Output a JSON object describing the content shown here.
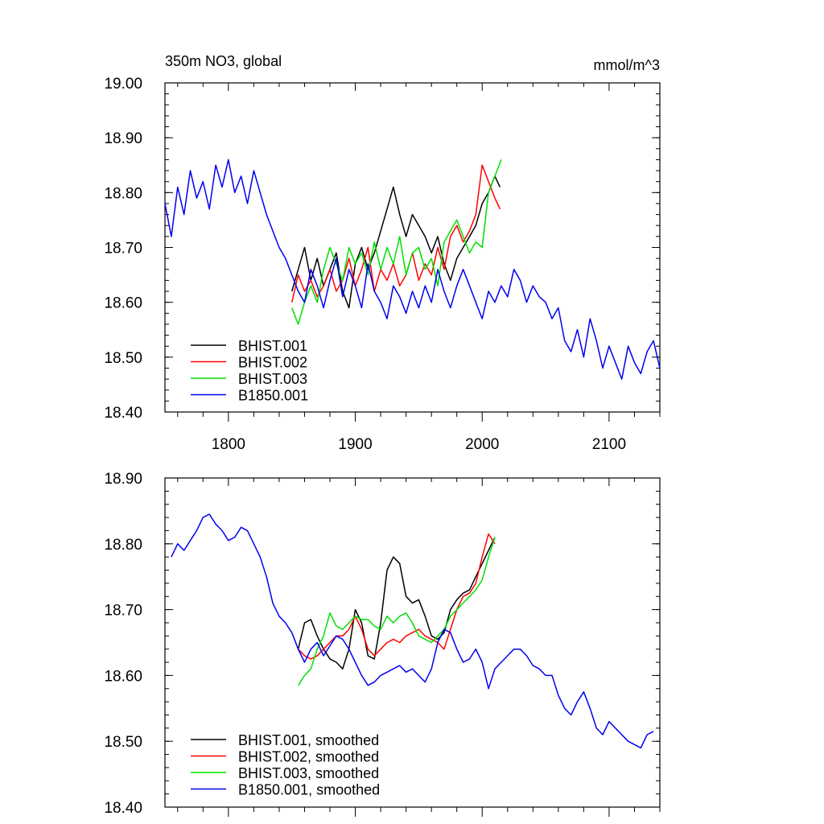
{
  "chart_data": [
    {
      "type": "line",
      "title": "350m NO3, global",
      "units": "mmol/m^3",
      "xlim": [
        1750,
        2140
      ],
      "ylim": [
        18.4,
        19.0
      ],
      "yticks": [
        "18.40",
        "18.50",
        "18.60",
        "18.70",
        "18.80",
        "18.90",
        "19.00"
      ],
      "yticks_values": [
        18.4,
        18.5,
        18.6,
        18.7,
        18.8,
        18.9,
        19.0
      ],
      "xticks": [
        "1800",
        "1900",
        "2000",
        "2100"
      ],
      "xticks_values": [
        1800,
        1900,
        2000,
        2100
      ],
      "legend_position": "bottom-left",
      "series": [
        {
          "name": "BHIST.001",
          "color": "#000000",
          "x": [
            1850,
            1855,
            1860,
            1865,
            1870,
            1875,
            1880,
            1885,
            1890,
            1895,
            1900,
            1905,
            1910,
            1915,
            1920,
            1925,
            1930,
            1935,
            1940,
            1945,
            1950,
            1955,
            1960,
            1965,
            1970,
            1975,
            1980,
            1985,
            1990,
            1995,
            2000,
            2005,
            2010,
            2014
          ],
          "y": [
            18.62,
            18.66,
            18.7,
            18.64,
            18.68,
            18.63,
            18.66,
            18.69,
            18.62,
            18.59,
            18.67,
            18.7,
            18.66,
            18.69,
            18.73,
            18.77,
            18.81,
            18.76,
            18.72,
            18.76,
            18.74,
            18.72,
            18.69,
            18.72,
            18.67,
            18.64,
            18.68,
            18.7,
            18.72,
            18.74,
            18.78,
            18.8,
            18.83,
            18.81
          ]
        },
        {
          "name": "BHIST.002",
          "color": "#ff0000",
          "x": [
            1850,
            1855,
            1860,
            1865,
            1870,
            1875,
            1880,
            1885,
            1890,
            1895,
            1900,
            1905,
            1910,
            1915,
            1920,
            1925,
            1930,
            1935,
            1940,
            1945,
            1950,
            1955,
            1960,
            1965,
            1970,
            1975,
            1980,
            1985,
            1990,
            1995,
            2000,
            2005,
            2010,
            2014
          ],
          "y": [
            18.6,
            18.65,
            18.62,
            18.64,
            18.61,
            18.63,
            18.66,
            18.62,
            18.64,
            18.68,
            18.63,
            18.66,
            18.7,
            18.62,
            18.66,
            18.64,
            18.67,
            18.63,
            18.65,
            18.69,
            18.64,
            18.67,
            18.65,
            18.7,
            18.66,
            18.72,
            18.74,
            18.71,
            18.73,
            18.76,
            18.85,
            18.82,
            18.79,
            18.77
          ]
        },
        {
          "name": "BHIST.003",
          "color": "#00e000",
          "x": [
            1850,
            1855,
            1860,
            1865,
            1870,
            1875,
            1880,
            1885,
            1890,
            1895,
            1900,
            1905,
            1910,
            1915,
            1920,
            1925,
            1930,
            1935,
            1940,
            1945,
            1950,
            1955,
            1960,
            1965,
            1970,
            1975,
            1980,
            1985,
            1990,
            1995,
            2000,
            2005,
            2010,
            2015
          ],
          "y": [
            18.59,
            18.56,
            18.6,
            18.63,
            18.6,
            18.66,
            18.7,
            18.67,
            18.64,
            18.7,
            18.67,
            18.69,
            18.65,
            18.71,
            18.66,
            18.7,
            18.67,
            18.72,
            18.65,
            18.69,
            18.7,
            18.66,
            18.68,
            18.63,
            18.71,
            18.73,
            18.75,
            18.72,
            18.69,
            18.71,
            18.7,
            18.8,
            18.83,
            18.86
          ]
        },
        {
          "name": "B1850.001",
          "color": "#0000ee",
          "x": [
            1750,
            1755,
            1760,
            1765,
            1770,
            1775,
            1780,
            1785,
            1790,
            1795,
            1800,
            1805,
            1810,
            1815,
            1820,
            1825,
            1830,
            1835,
            1840,
            1845,
            1850,
            1855,
            1860,
            1865,
            1870,
            1875,
            1880,
            1885,
            1890,
            1895,
            1900,
            1905,
            1910,
            1915,
            1920,
            1925,
            1930,
            1935,
            1940,
            1945,
            1950,
            1955,
            1960,
            1965,
            1970,
            1975,
            1980,
            1985,
            1990,
            1995,
            2000,
            2005,
            2010,
            2015,
            2020,
            2025,
            2030,
            2035,
            2040,
            2045,
            2050,
            2055,
            2060,
            2065,
            2070,
            2075,
            2080,
            2085,
            2090,
            2095,
            2100,
            2105,
            2110,
            2115,
            2120,
            2125,
            2130,
            2135,
            2140
          ],
          "y": [
            18.78,
            18.72,
            18.81,
            18.76,
            18.84,
            18.79,
            18.82,
            18.77,
            18.85,
            18.81,
            18.86,
            18.8,
            18.83,
            18.78,
            18.84,
            18.8,
            18.76,
            18.73,
            18.7,
            18.68,
            18.65,
            18.62,
            18.6,
            18.66,
            18.63,
            18.59,
            18.64,
            18.68,
            18.61,
            18.66,
            18.63,
            18.59,
            18.67,
            18.62,
            18.6,
            18.57,
            18.63,
            18.61,
            18.58,
            18.62,
            18.59,
            18.63,
            18.6,
            18.66,
            18.62,
            18.59,
            18.63,
            18.66,
            18.63,
            18.6,
            18.57,
            18.62,
            18.6,
            18.63,
            18.61,
            18.66,
            18.64,
            18.6,
            18.63,
            18.61,
            18.6,
            18.57,
            18.59,
            18.53,
            18.51,
            18.55,
            18.5,
            18.57,
            18.53,
            18.48,
            18.52,
            18.49,
            18.46,
            18.52,
            18.49,
            18.47,
            18.51,
            18.53,
            18.48
          ]
        }
      ]
    },
    {
      "type": "line",
      "title": "",
      "xlim": [
        1750,
        2140
      ],
      "ylim": [
        18.4,
        18.9
      ],
      "yticks": [
        "18.40",
        "18.50",
        "18.60",
        "18.70",
        "18.80",
        "18.90"
      ],
      "yticks_values": [
        18.4,
        18.5,
        18.6,
        18.7,
        18.8,
        18.9
      ],
      "xticks_values": [
        1800,
        1900,
        2000,
        2100
      ],
      "legend_position": "bottom-left",
      "series": [
        {
          "name": "BHIST.001, smoothed",
          "color": "#000000",
          "x": [
            1855,
            1860,
            1865,
            1870,
            1875,
            1880,
            1885,
            1890,
            1895,
            1900,
            1905,
            1910,
            1915,
            1920,
            1925,
            1930,
            1935,
            1940,
            1945,
            1950,
            1955,
            1960,
            1965,
            1970,
            1975,
            1980,
            1985,
            1990,
            1995,
            2000,
            2005,
            2010
          ],
          "y": [
            18.64,
            18.68,
            18.685,
            18.66,
            18.64,
            18.625,
            18.62,
            18.61,
            18.64,
            18.7,
            18.68,
            18.63,
            18.625,
            18.68,
            18.76,
            18.78,
            18.77,
            18.72,
            18.71,
            18.715,
            18.69,
            18.66,
            18.655,
            18.665,
            18.7,
            18.715,
            18.725,
            18.73,
            18.75,
            18.77,
            18.79,
            18.81
          ]
        },
        {
          "name": "BHIST.002, smoothed",
          "color": "#ff0000",
          "x": [
            1855,
            1860,
            1865,
            1870,
            1875,
            1880,
            1885,
            1890,
            1895,
            1900,
            1905,
            1910,
            1915,
            1920,
            1925,
            1930,
            1935,
            1940,
            1945,
            1950,
            1955,
            1960,
            1965,
            1970,
            1975,
            1980,
            1985,
            1990,
            1995,
            2000,
            2005,
            2010
          ],
          "y": [
            18.64,
            18.63,
            18.625,
            18.63,
            18.64,
            18.65,
            18.66,
            18.66,
            18.67,
            18.69,
            18.67,
            18.64,
            18.63,
            18.64,
            18.65,
            18.655,
            18.65,
            18.66,
            18.665,
            18.67,
            18.66,
            18.655,
            18.65,
            18.64,
            18.67,
            18.7,
            18.72,
            18.725,
            18.74,
            18.78,
            18.815,
            18.8
          ]
        },
        {
          "name": "BHIST.003, smoothed",
          "color": "#00e000",
          "x": [
            1855,
            1860,
            1865,
            1870,
            1875,
            1880,
            1885,
            1890,
            1895,
            1900,
            1905,
            1910,
            1915,
            1920,
            1925,
            1930,
            1935,
            1940,
            1945,
            1950,
            1955,
            1960,
            1965,
            1970,
            1975,
            1980,
            1985,
            1990,
            1995,
            2000,
            2005,
            2010
          ],
          "y": [
            18.585,
            18.6,
            18.61,
            18.64,
            18.66,
            18.695,
            18.675,
            18.67,
            18.68,
            18.69,
            18.685,
            18.685,
            18.675,
            18.67,
            18.69,
            18.68,
            18.69,
            18.695,
            18.68,
            18.66,
            18.655,
            18.65,
            18.66,
            18.67,
            18.69,
            18.7,
            18.71,
            18.72,
            18.73,
            18.745,
            18.78,
            18.81
          ]
        },
        {
          "name": "B1850.001, smoothed",
          "color": "#0000ee",
          "x": [
            1755,
            1760,
            1765,
            1770,
            1775,
            1780,
            1785,
            1790,
            1795,
            1800,
            1805,
            1810,
            1815,
            1820,
            1825,
            1830,
            1835,
            1840,
            1845,
            1850,
            1855,
            1860,
            1865,
            1870,
            1875,
            1880,
            1885,
            1890,
            1895,
            1900,
            1905,
            1910,
            1915,
            1920,
            1925,
            1930,
            1935,
            1940,
            1945,
            1950,
            1955,
            1960,
            1965,
            1970,
            1975,
            1980,
            1985,
            1990,
            1995,
            2000,
            2005,
            2010,
            2015,
            2020,
            2025,
            2030,
            2035,
            2040,
            2045,
            2050,
            2055,
            2060,
            2065,
            2070,
            2075,
            2080,
            2085,
            2090,
            2095,
            2100,
            2105,
            2110,
            2115,
            2120,
            2125,
            2130,
            2135
          ],
          "y": [
            18.78,
            18.8,
            18.79,
            18.805,
            18.82,
            18.84,
            18.845,
            18.83,
            18.82,
            18.805,
            18.81,
            18.825,
            18.82,
            18.8,
            18.78,
            18.75,
            18.71,
            18.69,
            18.68,
            18.665,
            18.64,
            18.62,
            18.64,
            18.65,
            18.63,
            18.645,
            18.66,
            18.655,
            18.64,
            18.62,
            18.6,
            18.585,
            18.59,
            18.6,
            18.605,
            18.61,
            18.615,
            18.605,
            18.61,
            18.6,
            18.59,
            18.61,
            18.65,
            18.67,
            18.665,
            18.64,
            18.62,
            18.625,
            18.64,
            18.62,
            18.58,
            18.61,
            18.62,
            18.63,
            18.64,
            18.64,
            18.63,
            18.615,
            18.61,
            18.6,
            18.6,
            18.57,
            18.55,
            18.54,
            18.56,
            18.575,
            18.55,
            18.52,
            18.51,
            18.53,
            18.52,
            18.51,
            18.5,
            18.495,
            18.49,
            18.51,
            18.515
          ]
        }
      ]
    }
  ]
}
